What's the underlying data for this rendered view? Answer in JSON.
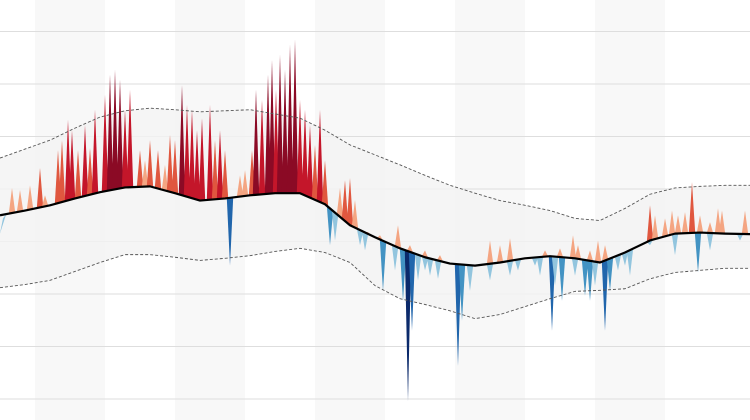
{
  "chart_data": {
    "type": "deviation",
    "xlim": [
      0,
      750
    ],
    "ylim": [
      -0.4,
      7.6
    ],
    "yticks": [
      0,
      1,
      2,
      3,
      4,
      5,
      6,
      7
    ],
    "grid": true,
    "x": [
      0,
      25,
      50,
      75,
      100,
      125,
      150,
      175,
      200,
      225,
      250,
      275,
      300,
      325,
      350,
      375,
      400,
      425,
      450,
      475,
      500,
      525,
      550,
      575,
      600,
      625,
      650,
      675,
      700,
      725,
      750
    ],
    "baseline": {
      "color": "#000000",
      "values": [
        3.5,
        3.59,
        3.69,
        3.82,
        3.94,
        4.03,
        4.05,
        3.92,
        3.78,
        3.82,
        3.88,
        3.92,
        3.92,
        3.71,
        3.31,
        3.08,
        2.87,
        2.7,
        2.58,
        2.54,
        2.6,
        2.68,
        2.72,
        2.68,
        2.6,
        2.79,
        3.02,
        3.15,
        3.17,
        3.15,
        3.14
      ]
    },
    "upper": {
      "color": "#555555",
      "values": [
        4.59,
        4.76,
        4.93,
        5.16,
        5.37,
        5.49,
        5.54,
        5.51,
        5.47,
        5.49,
        5.51,
        5.43,
        5.35,
        5.12,
        4.84,
        4.65,
        4.46,
        4.26,
        4.07,
        3.92,
        3.78,
        3.69,
        3.59,
        3.44,
        3.4,
        3.63,
        3.9,
        4.02,
        4.05,
        4.07,
        4.07
      ]
    },
    "lower": {
      "color": "#555555",
      "values": [
        2.12,
        2.18,
        2.26,
        2.43,
        2.6,
        2.75,
        2.75,
        2.7,
        2.64,
        2.68,
        2.73,
        2.81,
        2.87,
        2.79,
        2.6,
        2.16,
        1.91,
        1.8,
        1.68,
        1.53,
        1.61,
        1.76,
        1.91,
        2.05,
        2.07,
        2.1,
        2.29,
        2.41,
        2.45,
        2.49,
        2.49
      ]
    },
    "band_color": "#f2f2f2",
    "above_colors": [
      "#f4a582",
      "#e0573f",
      "#c4162a",
      "#8b0a25"
    ],
    "below_colors": [
      "#92c5de",
      "#4393c3",
      "#2166ac",
      "#0b2a6b"
    ],
    "spikes": {
      "x": [
        12,
        20,
        30,
        40,
        45,
        58,
        62,
        68,
        72,
        78,
        85,
        90,
        95,
        105,
        110,
        115,
        120,
        125,
        130,
        140,
        145,
        150,
        158,
        165,
        170,
        175,
        182,
        187,
        192,
        197,
        202,
        210,
        215,
        220,
        225,
        240,
        245,
        252,
        256,
        262,
        268,
        272,
        276,
        280,
        285,
        290,
        295,
        300,
        305,
        310,
        315,
        320,
        325,
        340,
        345,
        350,
        355,
        368,
        380,
        398,
        410,
        425,
        440,
        490,
        500,
        510,
        545,
        560,
        573,
        578,
        590,
        598,
        605,
        650,
        655,
        665,
        672,
        678,
        685,
        692,
        700,
        710,
        718,
        722,
        745,
        3,
        230,
        330,
        335,
        360,
        365,
        383,
        395,
        403,
        408,
        412,
        418,
        425,
        430,
        438,
        458,
        462,
        470,
        490,
        510,
        518,
        535,
        540,
        552,
        555,
        562,
        575,
        585,
        590,
        595,
        605,
        610,
        618,
        625,
        630,
        650,
        675,
        698,
        710,
        740
      ],
      "values": [
        4.02,
        3.98,
        4.07,
        4.4,
        3.88,
        4.74,
        4.93,
        5.32,
        5.12,
        4.74,
        5.22,
        4.78,
        5.51,
        5.79,
        6.18,
        6.27,
        6.08,
        5.51,
        5.89,
        4.74,
        4.55,
        4.93,
        4.74,
        4.46,
        5.03,
        4.93,
        5.98,
        5.6,
        5.51,
        5.12,
        5.35,
        5.6,
        4.93,
        5.12,
        4.74,
        4.26,
        4.36,
        4.74,
        5.89,
        5.7,
        6.18,
        6.46,
        5.89,
        6.56,
        6.27,
        6.75,
        6.85,
        5.7,
        5.51,
        5.22,
        4.84,
        5.51,
        4.55,
        4.02,
        4.17,
        4.21,
        3.79,
        3.18,
        3.12,
        3.31,
        2.93,
        2.83,
        2.74,
        3.02,
        2.93,
        3.06,
        2.83,
        2.87,
        3.12,
        2.93,
        2.83,
        3.02,
        2.93,
        3.69,
        3.5,
        3.44,
        3.59,
        3.5,
        3.56,
        4.13,
        3.5,
        3.37,
        3.63,
        3.59,
        3.59,
        3.44,
        2.54,
        2.93,
        3.02,
        2.93,
        2.83,
        2.06,
        2.45,
        1.87,
        -0.04,
        1.3,
        2.26,
        2.45,
        2.35,
        2.29,
        0.63,
        1.49,
        2.06,
        2.26,
        2.35,
        2.45,
        2.54,
        2.35,
        1.3,
        2.16,
        1.87,
        2.35,
        1.97,
        1.87,
        2.16,
        1.3,
        2.06,
        2.45,
        2.54,
        2.35,
        2.93,
        2.74,
        2.41,
        2.83,
        3.02
      ]
    }
  }
}
